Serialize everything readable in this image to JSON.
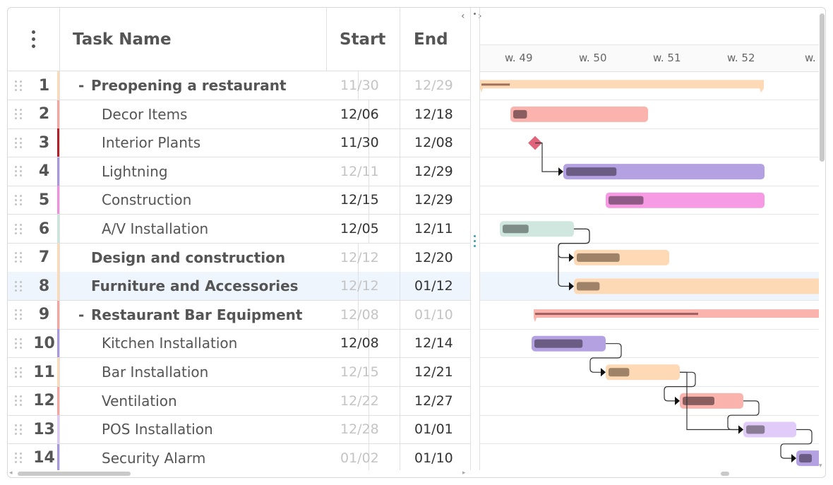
{
  "header": {
    "task_name": "Task Name",
    "start": "Start",
    "end": "End"
  },
  "weeks": [
    "w. 49",
    "w. 50",
    "w. 51",
    "w. 52",
    "w."
  ],
  "rows": [
    {
      "num": "1",
      "name": "Preopening a restaurant",
      "start": "11/30",
      "end": "12/29",
      "level": 0,
      "bold": true,
      "expander": "-",
      "startMuted": true,
      "endMuted": true,
      "color": "#fdd9b5"
    },
    {
      "num": "2",
      "name": "Decor Items",
      "start": "12/06",
      "end": "12/18",
      "level": 1,
      "bold": false,
      "expander": "",
      "startMuted": false,
      "endMuted": false,
      "color": "#f7a3a0"
    },
    {
      "num": "3",
      "name": "Interior Plants",
      "start": "11/30",
      "end": "12/08",
      "level": 1,
      "bold": false,
      "expander": "",
      "startMuted": false,
      "endMuted": false,
      "color": "#b3202a"
    },
    {
      "num": "4",
      "name": "Lightning",
      "start": "12/11",
      "end": "12/29",
      "level": 1,
      "bold": false,
      "expander": "",
      "startMuted": true,
      "endMuted": false,
      "color": "#a897e0"
    },
    {
      "num": "5",
      "name": "Construction",
      "start": "12/15",
      "end": "12/29",
      "level": 1,
      "bold": false,
      "expander": "",
      "startMuted": false,
      "endMuted": false,
      "color": "#f08fe0"
    },
    {
      "num": "6",
      "name": "A/V Installation",
      "start": "12/05",
      "end": "12/11",
      "level": 1,
      "bold": false,
      "expander": "",
      "startMuted": false,
      "endMuted": false,
      "color": "#c9e6dc"
    },
    {
      "num": "7",
      "name": "Design and construction",
      "start": "12/12",
      "end": "12/20",
      "level": 0,
      "bold": true,
      "expander": "",
      "startMuted": true,
      "endMuted": false,
      "color": "#fdd9b5"
    },
    {
      "num": "8",
      "name": "Furniture and Accessories",
      "start": "12/12",
      "end": "01/12",
      "level": 0,
      "bold": true,
      "expander": "",
      "startMuted": true,
      "endMuted": false,
      "color": "#fdd9b5",
      "selected": true
    },
    {
      "num": "9",
      "name": "Restaurant Bar Equipment",
      "start": "12/08",
      "end": "01/10",
      "level": 0,
      "bold": true,
      "expander": "-",
      "startMuted": true,
      "endMuted": true,
      "color": "#f7a3a0"
    },
    {
      "num": "10",
      "name": "Kitchen Installation",
      "start": "12/08",
      "end": "12/14",
      "level": 1,
      "bold": false,
      "expander": "",
      "startMuted": false,
      "endMuted": false,
      "color": "#a897e0"
    },
    {
      "num": "11",
      "name": "Bar Installation",
      "start": "12/15",
      "end": "12/21",
      "level": 1,
      "bold": false,
      "expander": "",
      "startMuted": true,
      "endMuted": false,
      "color": "#fdd9b5"
    },
    {
      "num": "12",
      "name": "Ventilation",
      "start": "12/22",
      "end": "12/27",
      "level": 1,
      "bold": false,
      "expander": "",
      "startMuted": true,
      "endMuted": false,
      "color": "#f7a3a0"
    },
    {
      "num": "13",
      "name": "POS Installation",
      "start": "12/28",
      "end": "01/01",
      "level": 1,
      "bold": false,
      "expander": "",
      "startMuted": true,
      "endMuted": false,
      "color": "#dcc8f7"
    },
    {
      "num": "14",
      "name": "Security Alarm",
      "start": "01/02",
      "end": "01/10",
      "level": 1,
      "bold": false,
      "expander": "",
      "startMuted": true,
      "endMuted": false,
      "color": "#a897e0"
    }
  ],
  "gantt": {
    "bars": [
      {
        "row": 1,
        "type": "summary",
        "color": "#fdd9b5",
        "progress": 0.1,
        "progressColor": "#a0715c"
      },
      {
        "row": 2,
        "type": "task",
        "color": "#fbb3ae",
        "progress": 0.1,
        "progressColor": "#8a5e5e"
      },
      {
        "row": 3,
        "type": "milestone",
        "color": "#e0657a"
      },
      {
        "row": 4,
        "type": "task",
        "color": "#b3a1e2",
        "progress": 0.25,
        "progressColor": "#6a5c83"
      },
      {
        "row": 5,
        "type": "task",
        "color": "#f59ae3",
        "progress": 0.22,
        "progressColor": "#8f5a86"
      },
      {
        "row": 6,
        "type": "task",
        "color": "#cfe7df",
        "progress": 0.35,
        "progressColor": "#7e8d88"
      },
      {
        "row": 7,
        "type": "task",
        "color": "#fdd9b5",
        "progress": 0.45,
        "progressColor": "#9f8368"
      },
      {
        "row": 8,
        "type": "task",
        "color": "#fdd9b5",
        "progress": 0.09,
        "progressColor": "#9f8368"
      },
      {
        "row": 9,
        "type": "summary",
        "color": "#fbb3ae",
        "progress": 0.55,
        "progressColor": "#a05e5e"
      },
      {
        "row": 10,
        "type": "task",
        "color": "#b3a1e2",
        "progress": 0.65,
        "progressColor": "#6a5c83"
      },
      {
        "row": 11,
        "type": "task",
        "color": "#fdd9b5",
        "progress": 0.28,
        "progressColor": "#9f8368"
      },
      {
        "row": 12,
        "type": "task",
        "color": "#fbb3ae",
        "progress": 0.5,
        "progressColor": "#8a5e5e"
      },
      {
        "row": 13,
        "type": "task",
        "color": "#e1cbf8",
        "progress": 0.35,
        "progressColor": "#8b7c96"
      },
      {
        "row": 14,
        "type": "task",
        "color": "#b3a1e2",
        "progress": 0.3,
        "progressColor": "#6a5c83"
      }
    ],
    "links": [
      {
        "from": 3,
        "to": 4
      },
      {
        "from": 6,
        "to": 7
      },
      {
        "from": 6,
        "to": 8
      },
      {
        "from": 10,
        "to": 11
      },
      {
        "from": 11,
        "to": 12
      },
      {
        "from": 11,
        "to": 13
      },
      {
        "from": 12,
        "to": 13
      },
      {
        "from": 13,
        "to": 14
      }
    ]
  }
}
